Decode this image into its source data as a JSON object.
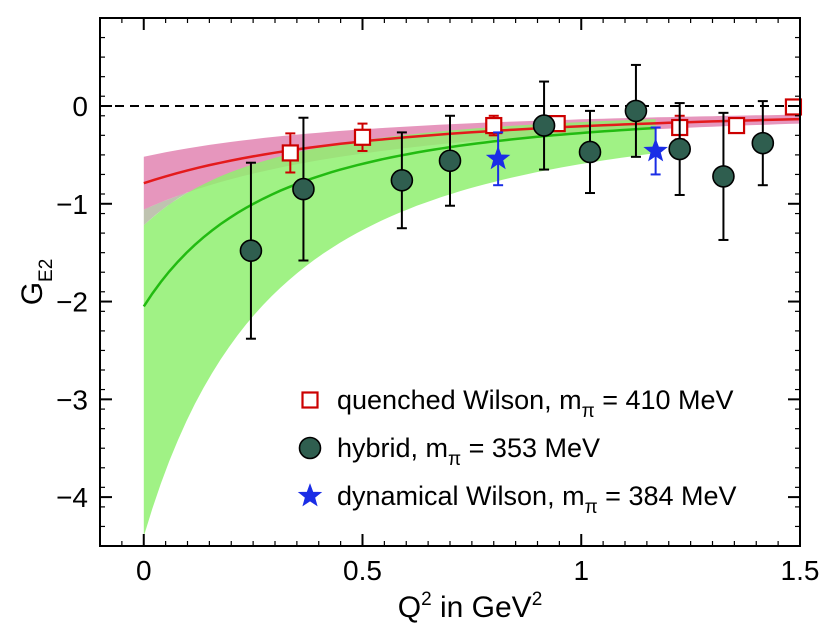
{
  "chart_data": {
    "type": "scatter",
    "title": "",
    "xlabel": {
      "base": "Q",
      "sup": "2",
      "mid": " in GeV",
      "sup2": "2"
    },
    "ylabel": {
      "base": "G",
      "sub": "E2"
    },
    "xlim": [
      -0.1,
      1.5
    ],
    "ylim": [
      -4.5,
      0.9
    ],
    "x_ticks": [
      0,
      0.5,
      1,
      1.5
    ],
    "x_tick_labels": [
      "0",
      "0.5",
      "1",
      "1.5"
    ],
    "y_ticks": [
      -4,
      -3,
      -2,
      -1,
      0
    ],
    "y_tick_labels": [
      "−4",
      "−3",
      "−2",
      "−1",
      "0"
    ],
    "zero_line": true,
    "legend_position": "bottom-right",
    "series": [
      {
        "name": "quenched Wilson",
        "legend_prefix": "quenched Wilson, m",
        "legend_sub": "π",
        "legend_suffix": " = 410 MeV",
        "marker": "open-square",
        "color": "#cc0000",
        "points": [
          {
            "x": 0.335,
            "y": -0.48,
            "err": 0.2
          },
          {
            "x": 0.5,
            "y": -0.32,
            "err": 0.14
          },
          {
            "x": 0.8,
            "y": -0.2,
            "err": 0.1
          },
          {
            "x": 0.945,
            "y": -0.18,
            "err": 0.07
          },
          {
            "x": 1.225,
            "y": -0.22,
            "err": 0.12
          },
          {
            "x": 1.355,
            "y": -0.2,
            "err": 0.06
          },
          {
            "x": 1.485,
            "y": -0.01,
            "err": 0.07
          }
        ]
      },
      {
        "name": "hybrid",
        "legend_prefix": "hybrid, m",
        "legend_sub": "π",
        "legend_suffix": " = 353 MeV",
        "marker": "filled-circle",
        "color": "#2f5e4f",
        "points": [
          {
            "x": 0.245,
            "y": -1.48,
            "err": 0.9
          },
          {
            "x": 0.365,
            "y": -0.85,
            "err": 0.73
          },
          {
            "x": 0.59,
            "y": -0.76,
            "err": 0.49
          },
          {
            "x": 0.7,
            "y": -0.56,
            "err": 0.46
          },
          {
            "x": 0.915,
            "y": -0.2,
            "err": 0.45
          },
          {
            "x": 1.02,
            "y": -0.47,
            "err": 0.42
          },
          {
            "x": 1.125,
            "y": -0.05,
            "err": 0.47
          },
          {
            "x": 1.225,
            "y": -0.44,
            "err": 0.47
          },
          {
            "x": 1.325,
            "y": -0.72,
            "err": 0.65
          },
          {
            "x": 1.415,
            "y": -0.38,
            "err": 0.43
          }
        ]
      },
      {
        "name": "dynamical Wilson",
        "legend_prefix": "dynamical Wilson, m",
        "legend_sub": "π",
        "legend_suffix": " = 384 MeV",
        "marker": "star",
        "color": "#1a2de6",
        "points": [
          {
            "x": 0.81,
            "y": -0.54,
            "err": 0.27
          },
          {
            "x": 1.17,
            "y": -0.46,
            "err": 0.24
          }
        ]
      }
    ],
    "fits": [
      {
        "name": "quenched fit",
        "color": "#e41a1c",
        "band_color": "#e38bb6",
        "form": "dipole",
        "g0": -0.79,
        "m2": 1.05,
        "band_upper_g0": -0.52,
        "band_lower_g0": -1.06,
        "x_range": [
          0,
          1.5
        ]
      },
      {
        "name": "hybrid fit",
        "color": "#22bb11",
        "band_color": "#8ff070",
        "form": "dipole",
        "g0": -2.05,
        "m2": 0.58,
        "band_upper_g0": -1.22,
        "band_lower_g0": -4.4,
        "x_range": [
          0,
          1.17
        ]
      }
    ]
  }
}
